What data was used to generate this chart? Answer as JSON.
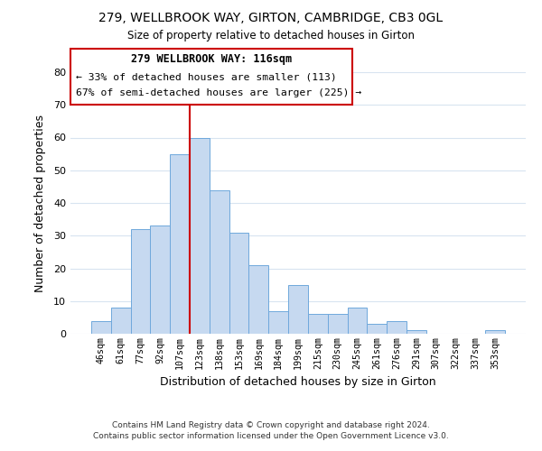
{
  "title1": "279, WELLBROOK WAY, GIRTON, CAMBRIDGE, CB3 0GL",
  "title2": "Size of property relative to detached houses in Girton",
  "xlabel": "Distribution of detached houses by size in Girton",
  "ylabel": "Number of detached properties",
  "bin_labels": [
    "46sqm",
    "61sqm",
    "77sqm",
    "92sqm",
    "107sqm",
    "123sqm",
    "138sqm",
    "153sqm",
    "169sqm",
    "184sqm",
    "199sqm",
    "215sqm",
    "230sqm",
    "245sqm",
    "261sqm",
    "276sqm",
    "291sqm",
    "307sqm",
    "322sqm",
    "337sqm",
    "353sqm"
  ],
  "bar_heights": [
    4,
    8,
    32,
    33,
    55,
    60,
    44,
    31,
    21,
    7,
    15,
    6,
    6,
    8,
    3,
    4,
    1,
    0,
    0,
    0,
    1
  ],
  "bar_color": "#c6d9f0",
  "bar_edge_color": "#6fa8dc",
  "vline_x_index": 5,
  "vline_color": "#cc0000",
  "ylim": [
    0,
    80
  ],
  "yticks": [
    0,
    10,
    20,
    30,
    40,
    50,
    60,
    70,
    80
  ],
  "annotation_title": "279 WELLBROOK WAY: 116sqm",
  "annotation_line1": "← 33% of detached houses are smaller (113)",
  "annotation_line2": "67% of semi-detached houses are larger (225) →",
  "footer1": "Contains HM Land Registry data © Crown copyright and database right 2024.",
  "footer2": "Contains public sector information licensed under the Open Government Licence v3.0.",
  "bg_color": "#ffffff",
  "grid_color": "#d8e4f0"
}
